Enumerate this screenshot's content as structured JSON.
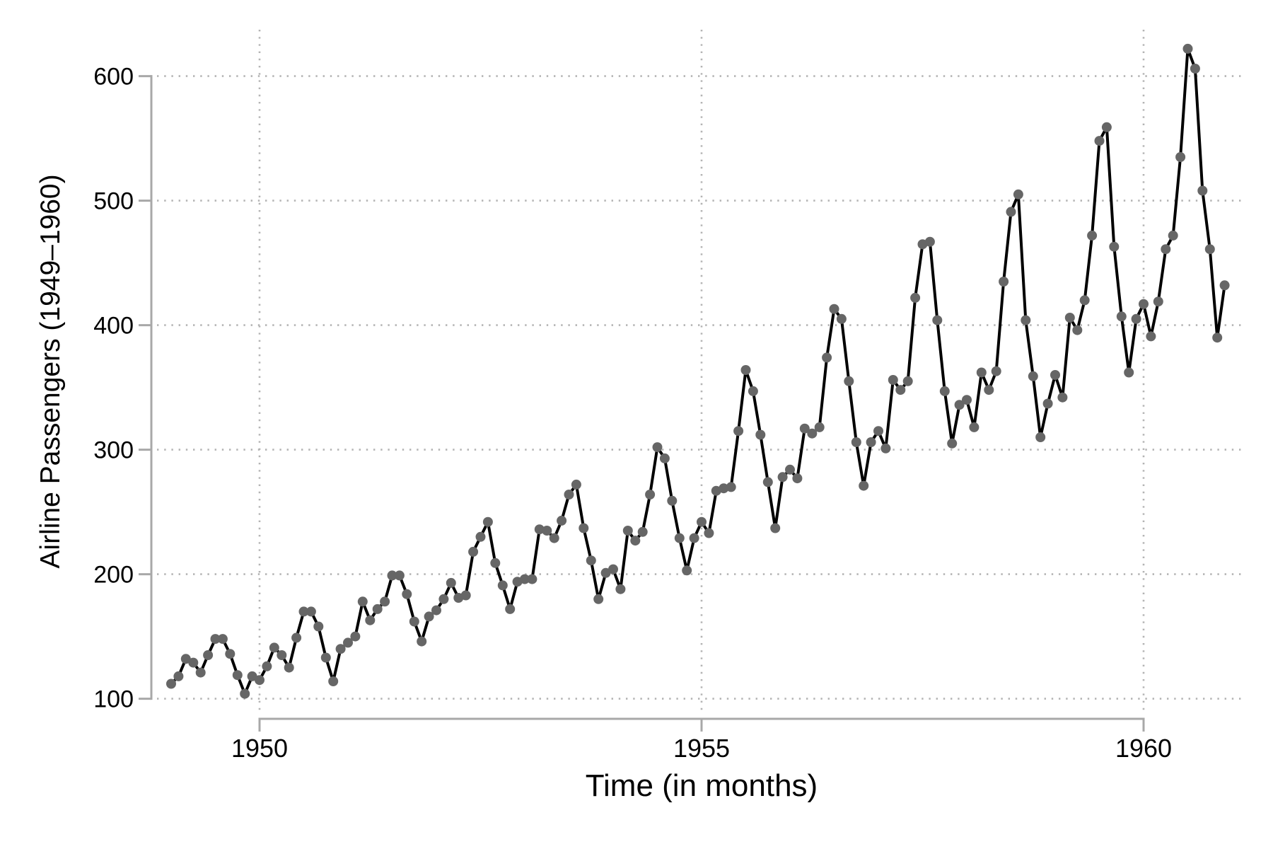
{
  "chart_data": {
    "type": "line",
    "title": "",
    "xlabel": "Time (in months)",
    "ylabel": "Airline Passengers (1949–1960)",
    "x_unit": "months",
    "x_start": {
      "year": 1949,
      "month": 1
    },
    "x_end": {
      "year": 1960,
      "month": 12
    },
    "x_ticks": [
      {
        "year": 1950,
        "label": "1950"
      },
      {
        "year": 1955,
        "label": "1955"
      },
      {
        "year": 1960,
        "label": "1960"
      }
    ],
    "y_ticks": [
      {
        "value": 100,
        "label": "100"
      },
      {
        "value": 200,
        "label": "200"
      },
      {
        "value": 300,
        "label": "300"
      },
      {
        "value": 400,
        "label": "400"
      },
      {
        "value": 500,
        "label": "500"
      },
      {
        "value": 600,
        "label": "600"
      }
    ],
    "ylim": [
      100,
      600
    ],
    "grid": "dotted",
    "legend_position": "none",
    "marker_style": "filled-circle",
    "series": [
      {
        "name": "Airline Passengers",
        "values": [
          112,
          118,
          132,
          129,
          121,
          135,
          148,
          148,
          136,
          119,
          104,
          118,
          115,
          126,
          141,
          135,
          125,
          149,
          170,
          170,
          158,
          133,
          114,
          140,
          145,
          150,
          178,
          163,
          172,
          178,
          199,
          199,
          184,
          162,
          146,
          166,
          171,
          180,
          193,
          181,
          183,
          218,
          230,
          242,
          209,
          191,
          172,
          194,
          196,
          196,
          236,
          235,
          229,
          243,
          264,
          272,
          237,
          211,
          180,
          201,
          204,
          188,
          235,
          227,
          234,
          264,
          302,
          293,
          259,
          229,
          203,
          229,
          242,
          233,
          267,
          269,
          270,
          315,
          364,
          347,
          312,
          274,
          237,
          278,
          284,
          277,
          317,
          313,
          318,
          374,
          413,
          405,
          355,
          306,
          271,
          306,
          315,
          301,
          356,
          348,
          355,
          422,
          465,
          467,
          404,
          347,
          305,
          336,
          340,
          318,
          362,
          348,
          363,
          435,
          491,
          505,
          404,
          359,
          310,
          337,
          360,
          342,
          406,
          396,
          420,
          472,
          548,
          559,
          463,
          407,
          362,
          405,
          417,
          391,
          419,
          461,
          472,
          535,
          622,
          606,
          508,
          461,
          390,
          432
        ]
      }
    ],
    "colors": {
      "line": "#000000",
      "marker": "#666666",
      "axis": "#a8a8a8",
      "grid": "#b4b4b4",
      "text": "#000000",
      "background": "#ffffff"
    }
  }
}
